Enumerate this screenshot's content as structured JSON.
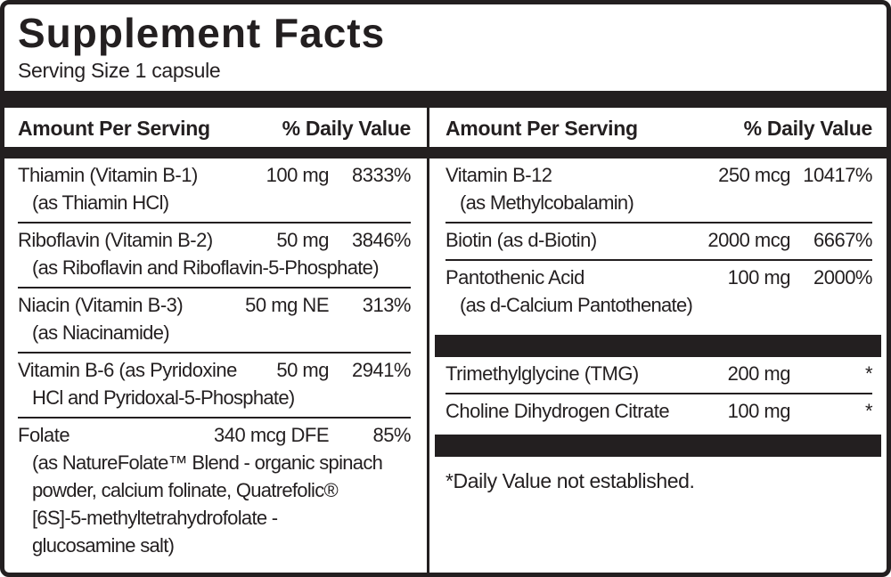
{
  "title": "Supplement Facts",
  "serving_size": "Serving Size 1 capsule",
  "colors": {
    "ink": "#231f20",
    "background": "#ffffff"
  },
  "columns": {
    "left": {
      "header": {
        "amount_label": "Amount Per Serving",
        "dv_label": "% Daily Value"
      },
      "rows": [
        {
          "name": "Thiamin (Vitamin B-1)",
          "amount": "100 mg",
          "dv": "8333%",
          "sub": "(as Thiamin HCl)"
        },
        {
          "name": "Riboflavin (Vitamin B-2)",
          "amount": "50 mg",
          "dv": "3846%",
          "sub": "(as Riboflavin and Riboflavin-5-Phosphate)"
        },
        {
          "name": "Niacin (Vitamin B-3)",
          "amount": "50 mg NE",
          "dv": "313%",
          "sub": "(as Niacinamide)"
        },
        {
          "name": "Vitamin B-6 (as Pyridoxine",
          "amount": "50 mg",
          "dv": "2941%",
          "sub": "HCl and Pyridoxal-5-Phosphate)"
        },
        {
          "name": "Folate",
          "amount": "340 mcg DFE",
          "dv": "85%",
          "sub": "(as NatureFolate™ Blend - organic spinach\npowder, calcium folinate, Quatrefolic®\n[6S]-5-methyltetrahydrofolate -\nglucosamine salt)"
        }
      ]
    },
    "right": {
      "header": {
        "amount_label": "Amount Per Serving",
        "dv_label": "% Daily Value"
      },
      "rows": [
        {
          "name": "Vitamin B-12",
          "amount": "250 mcg",
          "dv": "10417%",
          "sub": "(as Methylcobalamin)"
        },
        {
          "name": "Biotin (as d-Biotin)",
          "amount": "2000 mcg",
          "dv": "6667%"
        },
        {
          "name": "Pantothenic Acid",
          "amount": "100 mg",
          "dv": "2000%",
          "sub": "(as d-Calcium Pantothenate)"
        }
      ],
      "other_rows": [
        {
          "name": "Trimethylglycine (TMG)",
          "amount": "200 mg",
          "dv": "*"
        },
        {
          "name": "Choline Dihydrogen Citrate",
          "amount": "100 mg",
          "dv": "*"
        }
      ],
      "footnote": "*Daily Value not established."
    }
  }
}
